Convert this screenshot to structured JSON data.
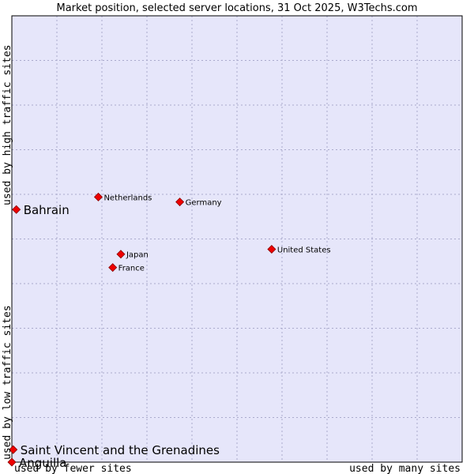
{
  "chart_data": {
    "type": "scatter",
    "title": "Market position, selected server locations, 31 Oct 2025, W3Techs.com",
    "xlabel_low": "used by fewer sites",
    "xlabel_high": "used by many sites",
    "ylabel_low": "used by low traffic sites",
    "ylabel_high": "used by high traffic sites",
    "xlim": [
      0,
      100
    ],
    "ylim": [
      0,
      100
    ],
    "grid": true,
    "colors": {
      "plot_bg": "#e6e6fa",
      "grid": "#aaaacc",
      "point": "#ee0000",
      "point_border": "#880000"
    },
    "points": [
      {
        "name": "Netherlands",
        "x": 19.2,
        "y": 59.4,
        "highlight": false
      },
      {
        "name": "Germany",
        "x": 37.3,
        "y": 58.3,
        "highlight": false
      },
      {
        "name": "Bahrain",
        "x": 1.0,
        "y": 56.6,
        "highlight": true
      },
      {
        "name": "United States",
        "x": 57.7,
        "y": 47.7,
        "highlight": false
      },
      {
        "name": "Japan",
        "x": 24.2,
        "y": 46.6,
        "highlight": false
      },
      {
        "name": "France",
        "x": 22.4,
        "y": 43.6,
        "highlight": false
      },
      {
        "name": "Saint Vincent and the Grenadines",
        "x": 0.3,
        "y": 2.8,
        "highlight": true
      },
      {
        "name": "Anguilla",
        "x": 0.0,
        "y": 0.0,
        "highlight": true
      }
    ]
  }
}
